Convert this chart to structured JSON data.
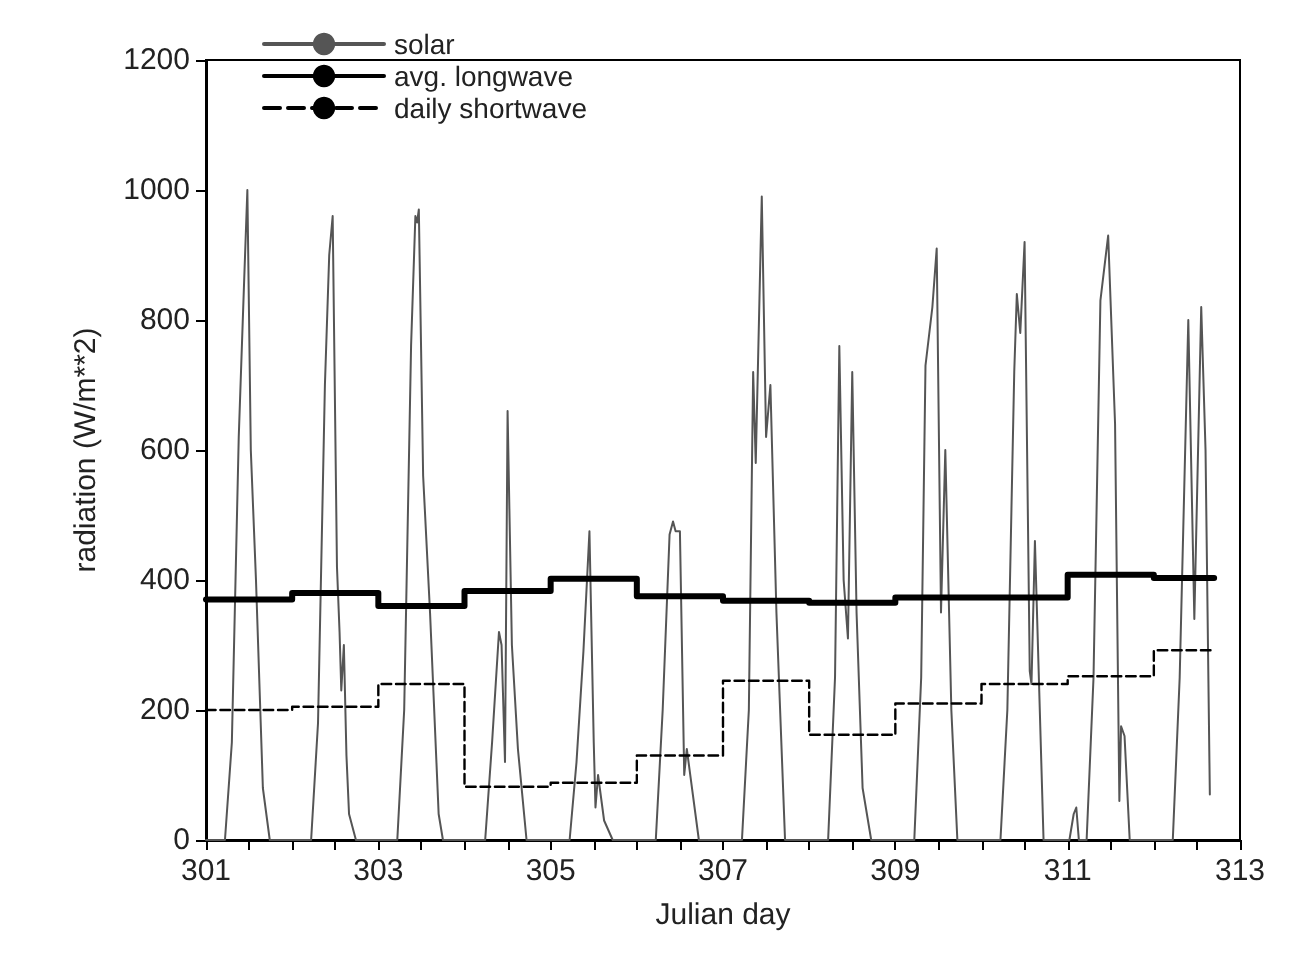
{
  "chart_data": {
    "type": "line",
    "xlabel": "Julian day",
    "ylabel": "radiation (W/m**2)",
    "xlim": [
      301,
      313
    ],
    "ylim": [
      0,
      1200
    ],
    "xticks": [
      301,
      {
        "value": 301.5,
        "label": null
      },
      {
        "value": 302,
        "label": null
      },
      {
        "value": 302.5,
        "label": null
      },
      303,
      {
        "value": 303.5,
        "label": null
      },
      {
        "value": 304,
        "label": null
      },
      {
        "value": 304.5,
        "label": null
      },
      305,
      {
        "value": 305.5,
        "label": null
      },
      {
        "value": 306,
        "label": null
      },
      {
        "value": 306.5,
        "label": null
      },
      307,
      {
        "value": 307.5,
        "label": null
      },
      {
        "value": 308,
        "label": null
      },
      {
        "value": 308.5,
        "label": null
      },
      309,
      {
        "value": 309.5,
        "label": null
      },
      {
        "value": 310,
        "label": null
      },
      {
        "value": 310.5,
        "label": null
      },
      311,
      {
        "value": 311.5,
        "label": null
      },
      {
        "value": 312,
        "label": null
      },
      {
        "value": 312.5,
        "label": null
      },
      313
    ],
    "yticks": [
      0,
      200,
      400,
      600,
      800,
      1000,
      1200
    ],
    "grid": false,
    "legend": "top left",
    "marker": "none",
    "series": [
      {
        "name": "solar",
        "color": "#555555",
        "line_style": "solid",
        "x": [
          301,
          301.22,
          301.3,
          301.38,
          301.44,
          301.48,
          301.52,
          301.58,
          301.66,
          301.74,
          302.22,
          302.3,
          302.38,
          302.43,
          302.47,
          302.52,
          302.55,
          302.57,
          302.6,
          302.63,
          302.66,
          302.74,
          303.22,
          303.3,
          303.38,
          303.43,
          303.45,
          303.47,
          303.52,
          303.6,
          303.7,
          303.75,
          304.24,
          304.32,
          304.4,
          304.43,
          304.47,
          304.5,
          304.55,
          304.62,
          304.72,
          305.22,
          305.3,
          305.38,
          305.45,
          305.5,
          305.52,
          305.55,
          305.62,
          305.72,
          306.22,
          306.3,
          306.38,
          306.42,
          306.45,
          306.5,
          306.55,
          306.58,
          306.72,
          307.22,
          307.3,
          307.35,
          307.38,
          307.45,
          307.5,
          307.55,
          307.62,
          307.72,
          308.22,
          308.3,
          308.35,
          308.4,
          308.45,
          308.5,
          308.55,
          308.62,
          308.72,
          309.22,
          309.3,
          309.35,
          309.43,
          309.48,
          309.53,
          309.58,
          309.65,
          309.72,
          310.22,
          310.3,
          310.38,
          310.41,
          310.45,
          310.5,
          310.56,
          310.58,
          310.62,
          310.72,
          311.02,
          311.07,
          311.1,
          311.13,
          311.22,
          311.3,
          311.38,
          311.47,
          311.55,
          311.6,
          311.62,
          311.66,
          311.72,
          312.22,
          312.3,
          312.4,
          312.47,
          312.55,
          312.6,
          312.65
        ],
        "values": [
          0,
          0,
          150,
          620,
          850,
          1000,
          600,
          400,
          80,
          0,
          0,
          180,
          700,
          900,
          960,
          420,
          320,
          230,
          300,
          130,
          40,
          0,
          0,
          200,
          760,
          960,
          950,
          970,
          560,
          350,
          40,
          0,
          0,
          150,
          320,
          300,
          120,
          660,
          300,
          140,
          0,
          0,
          120,
          290,
          475,
          150,
          50,
          100,
          30,
          0,
          0,
          200,
          470,
          490,
          475,
          475,
          100,
          140,
          0,
          0,
          200,
          720,
          580,
          990,
          620,
          700,
          350,
          0,
          0,
          250,
          760,
          400,
          310,
          720,
          350,
          80,
          0,
          0,
          250,
          730,
          820,
          910,
          350,
          600,
          200,
          0,
          0,
          200,
          720,
          840,
          780,
          920,
          260,
          240,
          460,
          0,
          0,
          40,
          50,
          0,
          0,
          250,
          830,
          930,
          640,
          60,
          175,
          160,
          0,
          0,
          250,
          800,
          340,
          820,
          600,
          70
        ]
      },
      {
        "name": "avg. longwave",
        "type": "step",
        "color": "#000000",
        "line_style": "solid",
        "x": [
          301,
          302,
          303,
          304,
          305,
          306,
          307,
          308,
          309,
          310,
          311,
          312,
          312.7
        ],
        "values": [
          370,
          380,
          360,
          383,
          402,
          375,
          368,
          365,
          373,
          373,
          408,
          403,
          403
        ]
      },
      {
        "name": "daily shortwave",
        "type": "step",
        "color": "#000000",
        "line_style": "dashed",
        "x": [
          301,
          302,
          303,
          304,
          305,
          306,
          307,
          308,
          309,
          310,
          311,
          312,
          312.7
        ],
        "values": [
          200,
          205,
          240,
          82,
          88,
          130,
          245,
          162,
          210,
          240,
          252,
          292,
          292
        ]
      }
    ]
  }
}
